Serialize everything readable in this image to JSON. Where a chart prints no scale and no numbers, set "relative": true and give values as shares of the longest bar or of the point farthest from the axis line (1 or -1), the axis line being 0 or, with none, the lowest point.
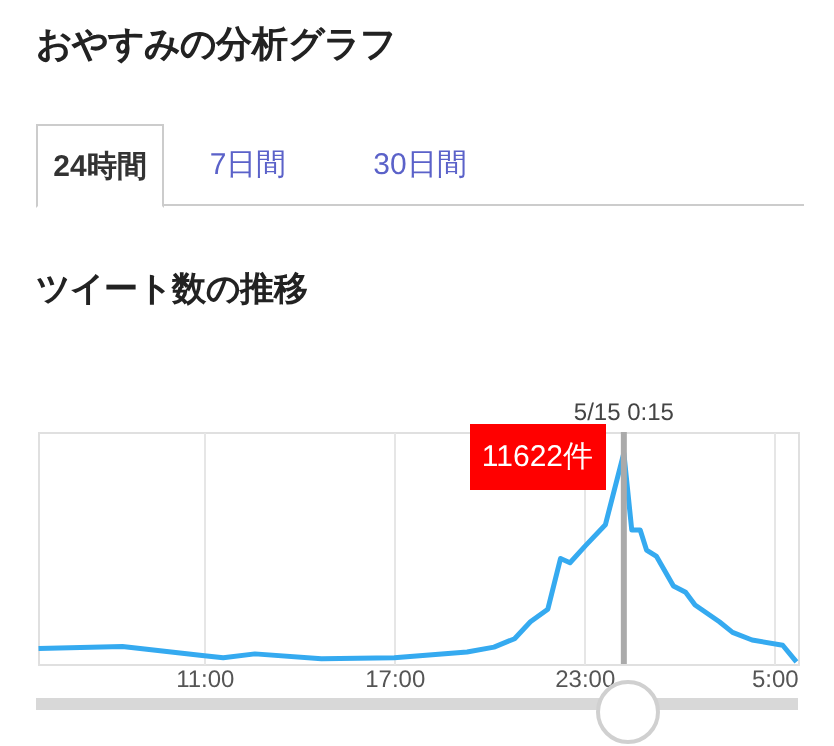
{
  "chart_data": {
    "type": "line",
    "title": "おやすみの分析グラフ",
    "subtitle": "ツイート数の推移",
    "relative": true,
    "annotations": [
      "24時間",
      "7日間",
      "30日間",
      {
        "text": "11622件",
        "x": "--05-15T00:15",
        "y": 1
      }
    ],
    "x": [
      "--05-14T05:46",
      "--05-14T08:25",
      "--05-14T10:56",
      "--05-14T11:36",
      "--05-14T12:36",
      "--05-14T14:42",
      "--05-14T17:00",
      "--05-14T19:18",
      "--05-14T20:09",
      "--05-14T20:48",
      "--05-14T21:18",
      "--05-14T21:51",
      "--05-14T22:15",
      "--05-14T22:33",
      "--05-14T23:02",
      "--05-14T23:40",
      "--05-15T00:15",
      "--05-15T00:30",
      "--05-15T00:46",
      "--05-15T00:58",
      "--05-15T01:17",
      "--05-15T01:49",
      "--05-15T02:12",
      "--05-15T02:30",
      "--05-15T03:16",
      "--05-15T03:41",
      "--05-15T04:18",
      "--05-15T05:16",
      "--05-15T05:42"
    ],
    "series": [
      {
        "color": "#35aaf0",
        "values": [
          0.073,
          0.083,
          0.04,
          0.03,
          0.048,
          0.025,
          0.03,
          0.057,
          0.08,
          0.12,
          0.2,
          0.26,
          0.5,
          0.48,
          0.56,
          0.66,
          1,
          0.635,
          0.635,
          0.54,
          0.51,
          0.37,
          0.34,
          0.28,
          0.2,
          0.15,
          0.114,
          0.089,
          0.01
        ]
      }
    ],
    "xlim": [
      "--05-14T05:45",
      "--05-15T05:45"
    ],
    "xticks": [
      {
        "value": "--05-14T11:00",
        "label": "11:00"
      },
      {
        "value": "--05-14T17:00",
        "label": "17:00"
      },
      {
        "value": "--05-14T23:00",
        "label": "23:00"
      },
      {
        "value": "--05-15T05:00",
        "label": "5:00"
      }
    ],
    "ref_lines": [
      {
        "axis": "x",
        "value": "--05-15T00:15",
        "label": "5/15 0:15",
        "color": "#aaaaaa"
      }
    ],
    "grid": "x",
    "marker": "none",
    "line_style": "solid"
  }
}
